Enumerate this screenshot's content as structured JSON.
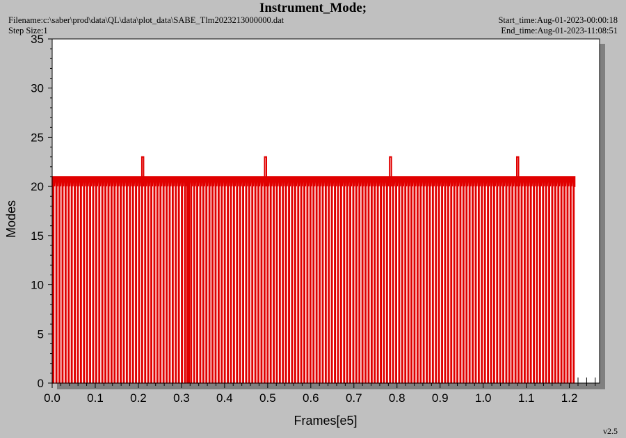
{
  "header": {
    "title": "Instrument_Mode;",
    "filename": "Filename:c:\\saber\\prod\\data\\QL\\data\\plot_data\\SABE_Tlm2023213000000.dat",
    "step_size": "Step Size:1",
    "start_time": "Start_time:Aug-01-2023-00:00:18",
    "end_time": "End_time:Aug-01-2023-11:08:51"
  },
  "version": "v2.5",
  "colors": {
    "series": "#e00000",
    "background": "#c0c0c0",
    "plot_bg": "#ffffff",
    "shadow": "#808080"
  },
  "chart_data": {
    "type": "line",
    "title": "Instrument_Mode;",
    "xlabel": "Frames[e5]",
    "ylabel": "Modes",
    "xlim": [
      0.0,
      1.27
    ],
    "ylim": [
      0,
      35
    ],
    "x_ticks": [
      "0.0",
      "0.1",
      "0.2",
      "0.3",
      "0.4",
      "0.5",
      "0.6",
      "0.7",
      "0.8",
      "0.9",
      "1.0",
      "1.1",
      "1.2"
    ],
    "y_ticks": [
      "0",
      "5",
      "10",
      "15",
      "20",
      "25",
      "30",
      "35"
    ],
    "grid": false,
    "series": [
      {
        "baseline_mode": 20,
        "high_mode": 21,
        "low_mode": 0,
        "pulse_period": 0.0071,
        "x_start": 0.0,
        "x_end": 1.21,
        "spikes": [
          {
            "x": 0.21,
            "value": 23
          },
          {
            "x": 0.495,
            "value": 23
          },
          {
            "x": 0.785,
            "value": 23
          },
          {
            "x": 1.08,
            "value": 23
          }
        ]
      }
    ]
  }
}
